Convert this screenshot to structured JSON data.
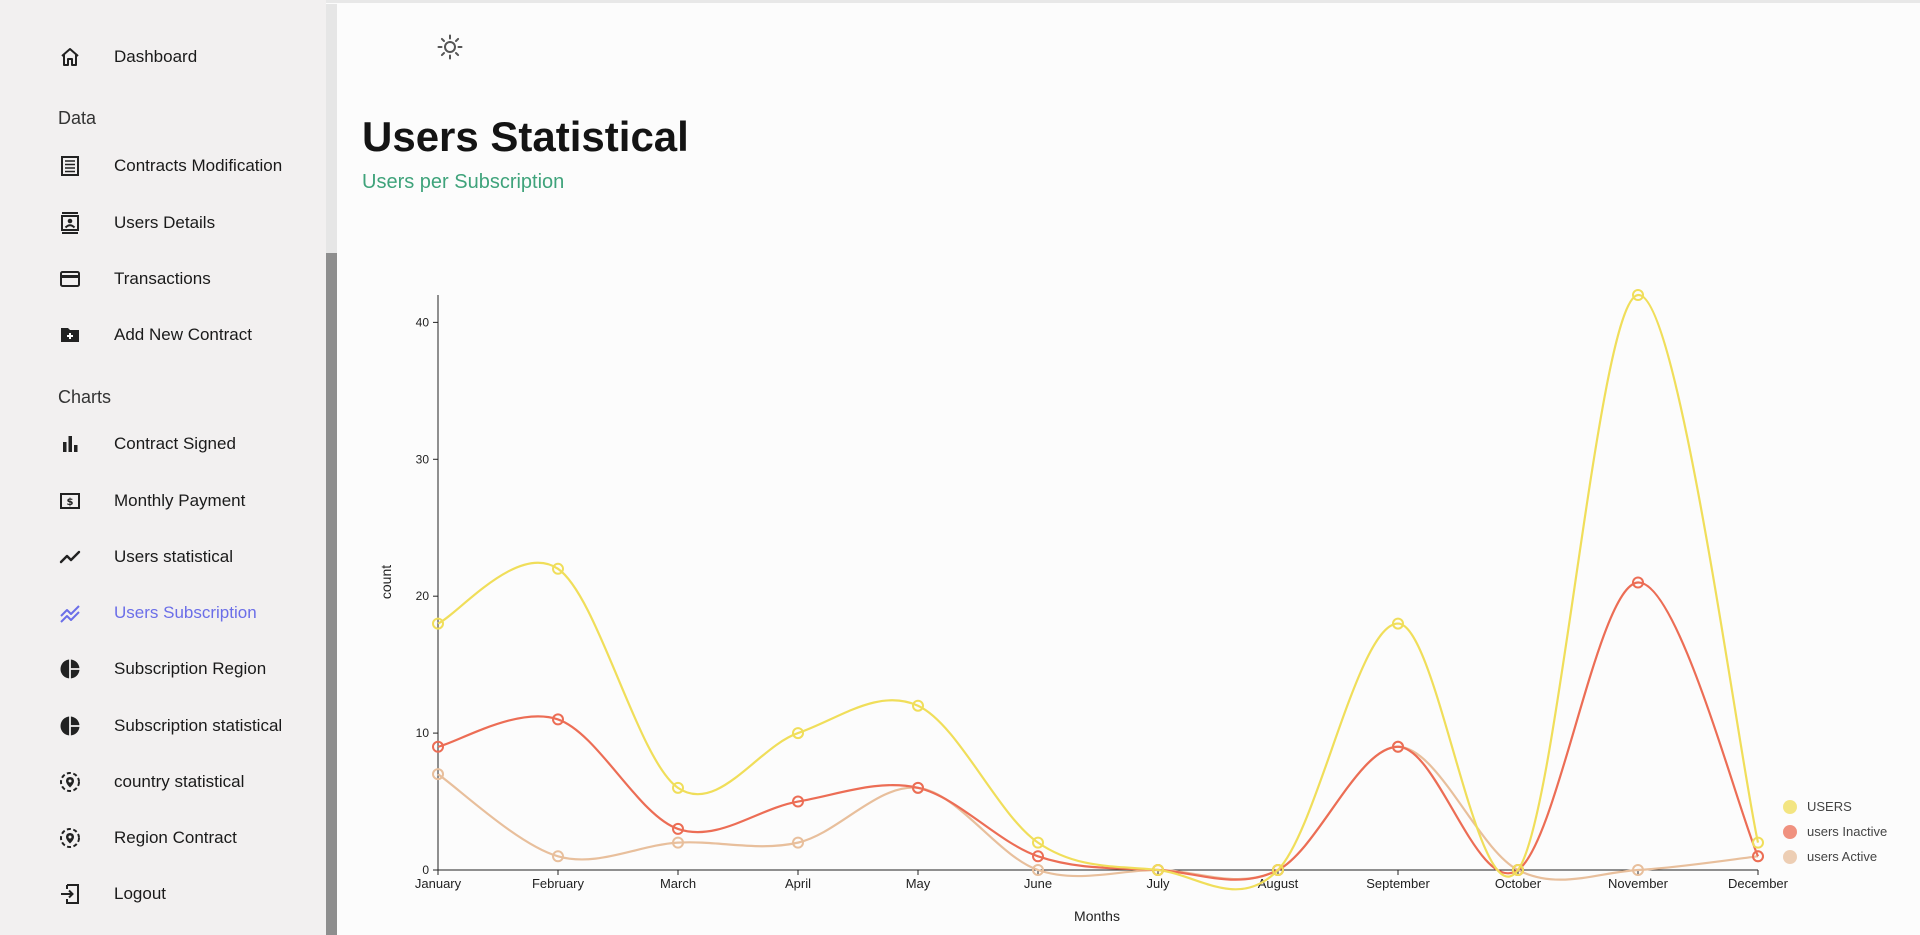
{
  "sidebar": {
    "dashboard": "Dashboard",
    "section_data": "Data",
    "section_charts": "Charts",
    "items": [
      {
        "label": "Contracts Modification",
        "icon": "list-alt-icon"
      },
      {
        "label": "Users Details",
        "icon": "contact-card-icon"
      },
      {
        "label": "Transactions",
        "icon": "credit-card-icon"
      },
      {
        "label": "Add New Contract",
        "icon": "folder-add-icon"
      },
      {
        "label": "Contract Signed",
        "icon": "bar-chart-icon"
      },
      {
        "label": "Monthly Payment",
        "icon": "payment-icon"
      },
      {
        "label": "Users statistical",
        "icon": "line-chart-icon"
      },
      {
        "label": "Users Subscription",
        "icon": "sparkline-icon",
        "active": true
      },
      {
        "label": "Subscription Region",
        "icon": "pie-chart-icon"
      },
      {
        "label": "Subscription statistical",
        "icon": "pie-chart-icon"
      },
      {
        "label": "country statistical",
        "icon": "location-icon"
      },
      {
        "label": "Region Contract",
        "icon": "location-icon"
      },
      {
        "label": "Logout",
        "icon": "logout-icon"
      }
    ],
    "active_color": "#6b6ee8"
  },
  "header": {
    "title": "Users Statistical",
    "subtitle": "Users per Subscription",
    "subtitle_color": "#3fa37b"
  },
  "chart_data": {
    "type": "line",
    "xlabel": "Months",
    "ylabel": "count",
    "x": [
      "January",
      "February",
      "March",
      "April",
      "May",
      "June",
      "July",
      "August",
      "September",
      "October",
      "November",
      "December"
    ],
    "ylim": [
      0,
      42
    ],
    "yticks": [
      0,
      10,
      20,
      30,
      40
    ],
    "legend_position": "bottom-right",
    "grid": false,
    "series": [
      {
        "name": "USERS",
        "color": "#f0de5a",
        "values": [
          18,
          22,
          6,
          10,
          12,
          2,
          0,
          0,
          18,
          0,
          42,
          2
        ]
      },
      {
        "name": "users Inactive",
        "color": "#ec6d55",
        "values": [
          9,
          11,
          3,
          5,
          6,
          1,
          0,
          0,
          9,
          0,
          21,
          1
        ]
      },
      {
        "name": "users Active",
        "color": "#e8bf9c",
        "values": [
          7,
          1,
          2,
          2,
          6,
          0,
          0,
          0,
          9,
          0,
          0,
          1
        ]
      }
    ]
  }
}
